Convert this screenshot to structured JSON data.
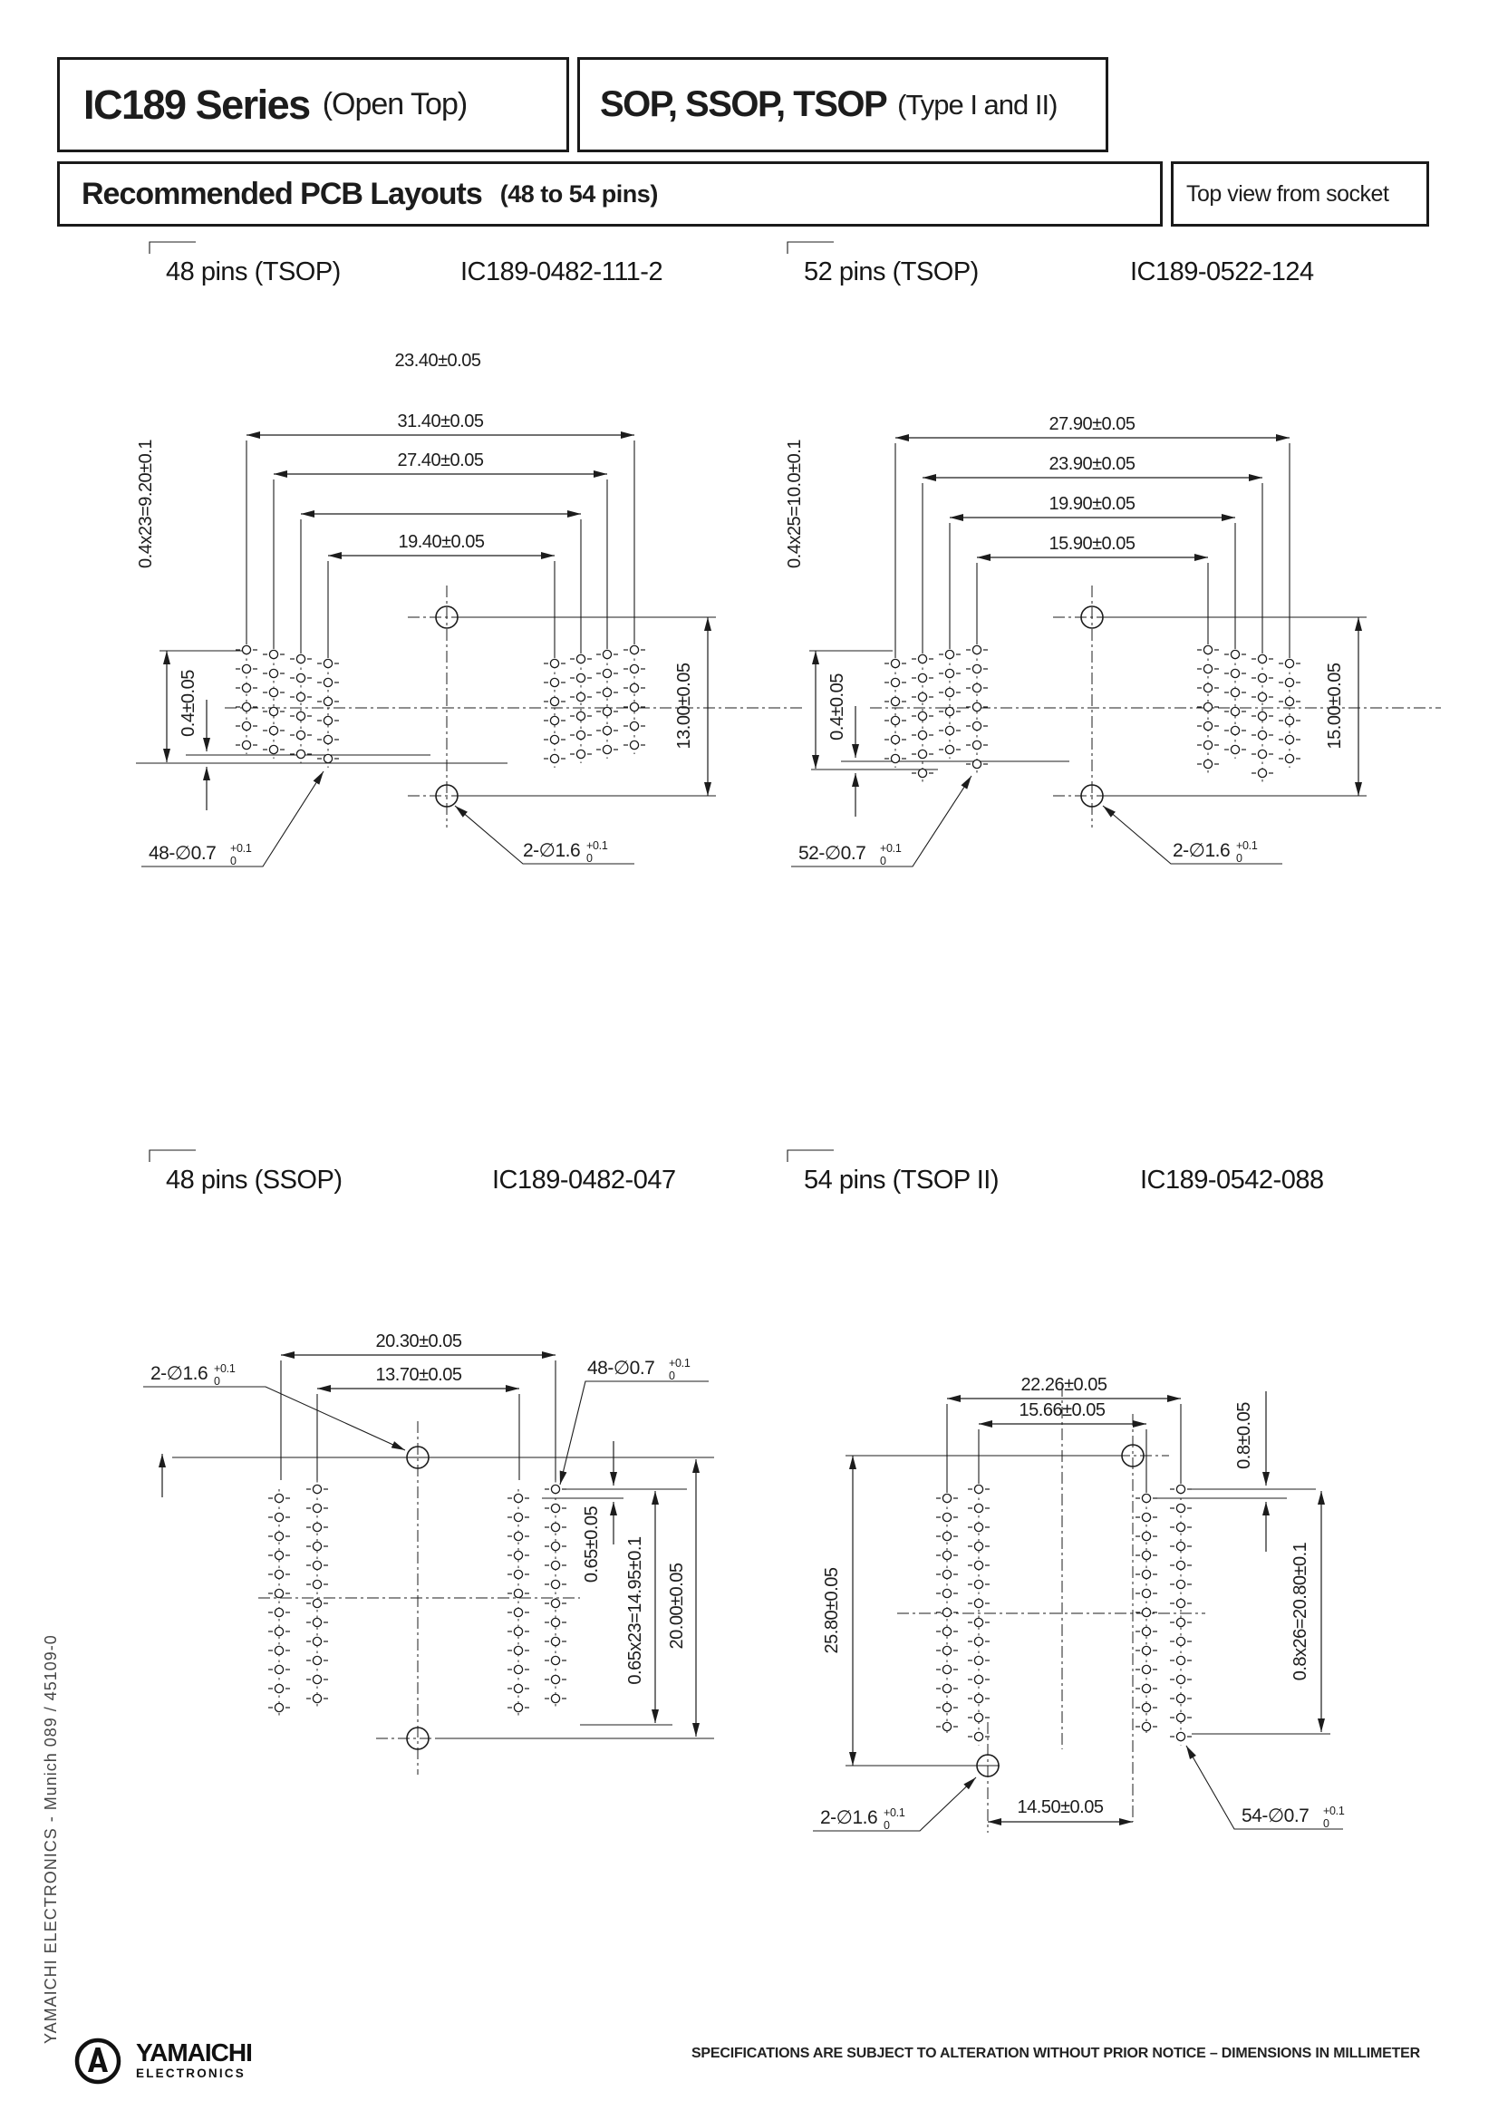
{
  "header": {
    "series_title": "IC189 Series",
    "series_note": "(Open Top)",
    "package_title": "SOP, SSOP, TSOP",
    "package_note": "(Type I and II)",
    "section_title": "Recommended PCB Layouts",
    "section_note": "(48 to 54 pins)",
    "view_note": "Top view from socket"
  },
  "drawings": {
    "d1": {
      "title": "48 pins (TSOP)",
      "part_number": "IC189-0482-111-2",
      "dims": {
        "w1": "31.40±0.05",
        "w2": "27.40±0.05",
        "w3": "23.40±0.05",
        "w4": "19.40±0.05",
        "pitch": "0.4x23=9.20±0.1",
        "offset": "0.4±0.05",
        "holes_v": "13.00±0.05"
      },
      "labels": {
        "pin": {
          "main": "48-∅0.7",
          "sup": "+0.1",
          "sub": "0"
        },
        "index": {
          "main": "2-∅1.6",
          "sup": "+0.1",
          "sub": "0"
        }
      }
    },
    "d2": {
      "title": "52 pins (TSOP)",
      "part_number": "IC189-0522-124",
      "dims": {
        "w1": "27.90±0.05",
        "w2": "23.90±0.05",
        "w3": "19.90±0.05",
        "w4": "15.90±0.05",
        "pitch": "0.4x25=10.0±0.1",
        "offset": "0.4±0.05",
        "holes_v": "15.00±0.05"
      },
      "labels": {
        "pin": {
          "main": "52-∅0.7",
          "sup": "+0.1",
          "sub": "0"
        },
        "index": {
          "main": "2-∅1.6",
          "sup": "+0.1",
          "sub": "0"
        }
      }
    },
    "d3": {
      "title": "48 pins (SSOP)",
      "part_number": "IC189-0482-047",
      "dims": {
        "w1": "20.30±0.05",
        "w2": "13.70±0.05",
        "offset": "0.65±0.05",
        "pitch": "0.65x23=14.95±0.1",
        "span": "20.00±0.05"
      },
      "labels": {
        "pin": {
          "main": "48-∅0.7",
          "sup": "+0.1",
          "sub": "0"
        },
        "index": {
          "main": "2-∅1.6",
          "sup": "+0.1",
          "sub": "0"
        }
      }
    },
    "d4": {
      "title": "54 pins (TSOP II)",
      "part_number": "IC189-0542-088",
      "dims": {
        "w1": "22.26±0.05",
        "w2": "15.66±0.05",
        "w3": "14.50±0.05",
        "offset": "0.8±0.05",
        "pitch": "0.8x26=20.80±0.1",
        "span": "25.80±0.05"
      },
      "labels": {
        "pin": {
          "main": "54-∅0.7",
          "sup": "+0.1",
          "sub": "0"
        },
        "index": {
          "main": "2-∅1.6",
          "sup": "+0.1",
          "sub": "0"
        }
      }
    }
  },
  "sidebar": {
    "text": "YAMAICHI ELECTRONICS   -   Munich 089 / 45109-0"
  },
  "footer": {
    "brand_line1": "YAMAICHI",
    "brand_line2": "ELECTRONICS",
    "notice": "SPECIFICATIONS ARE SUBJECT TO ALTERATION WITHOUT PRIOR NOTICE   –   DIMENSIONS IN MILLIMETER"
  }
}
